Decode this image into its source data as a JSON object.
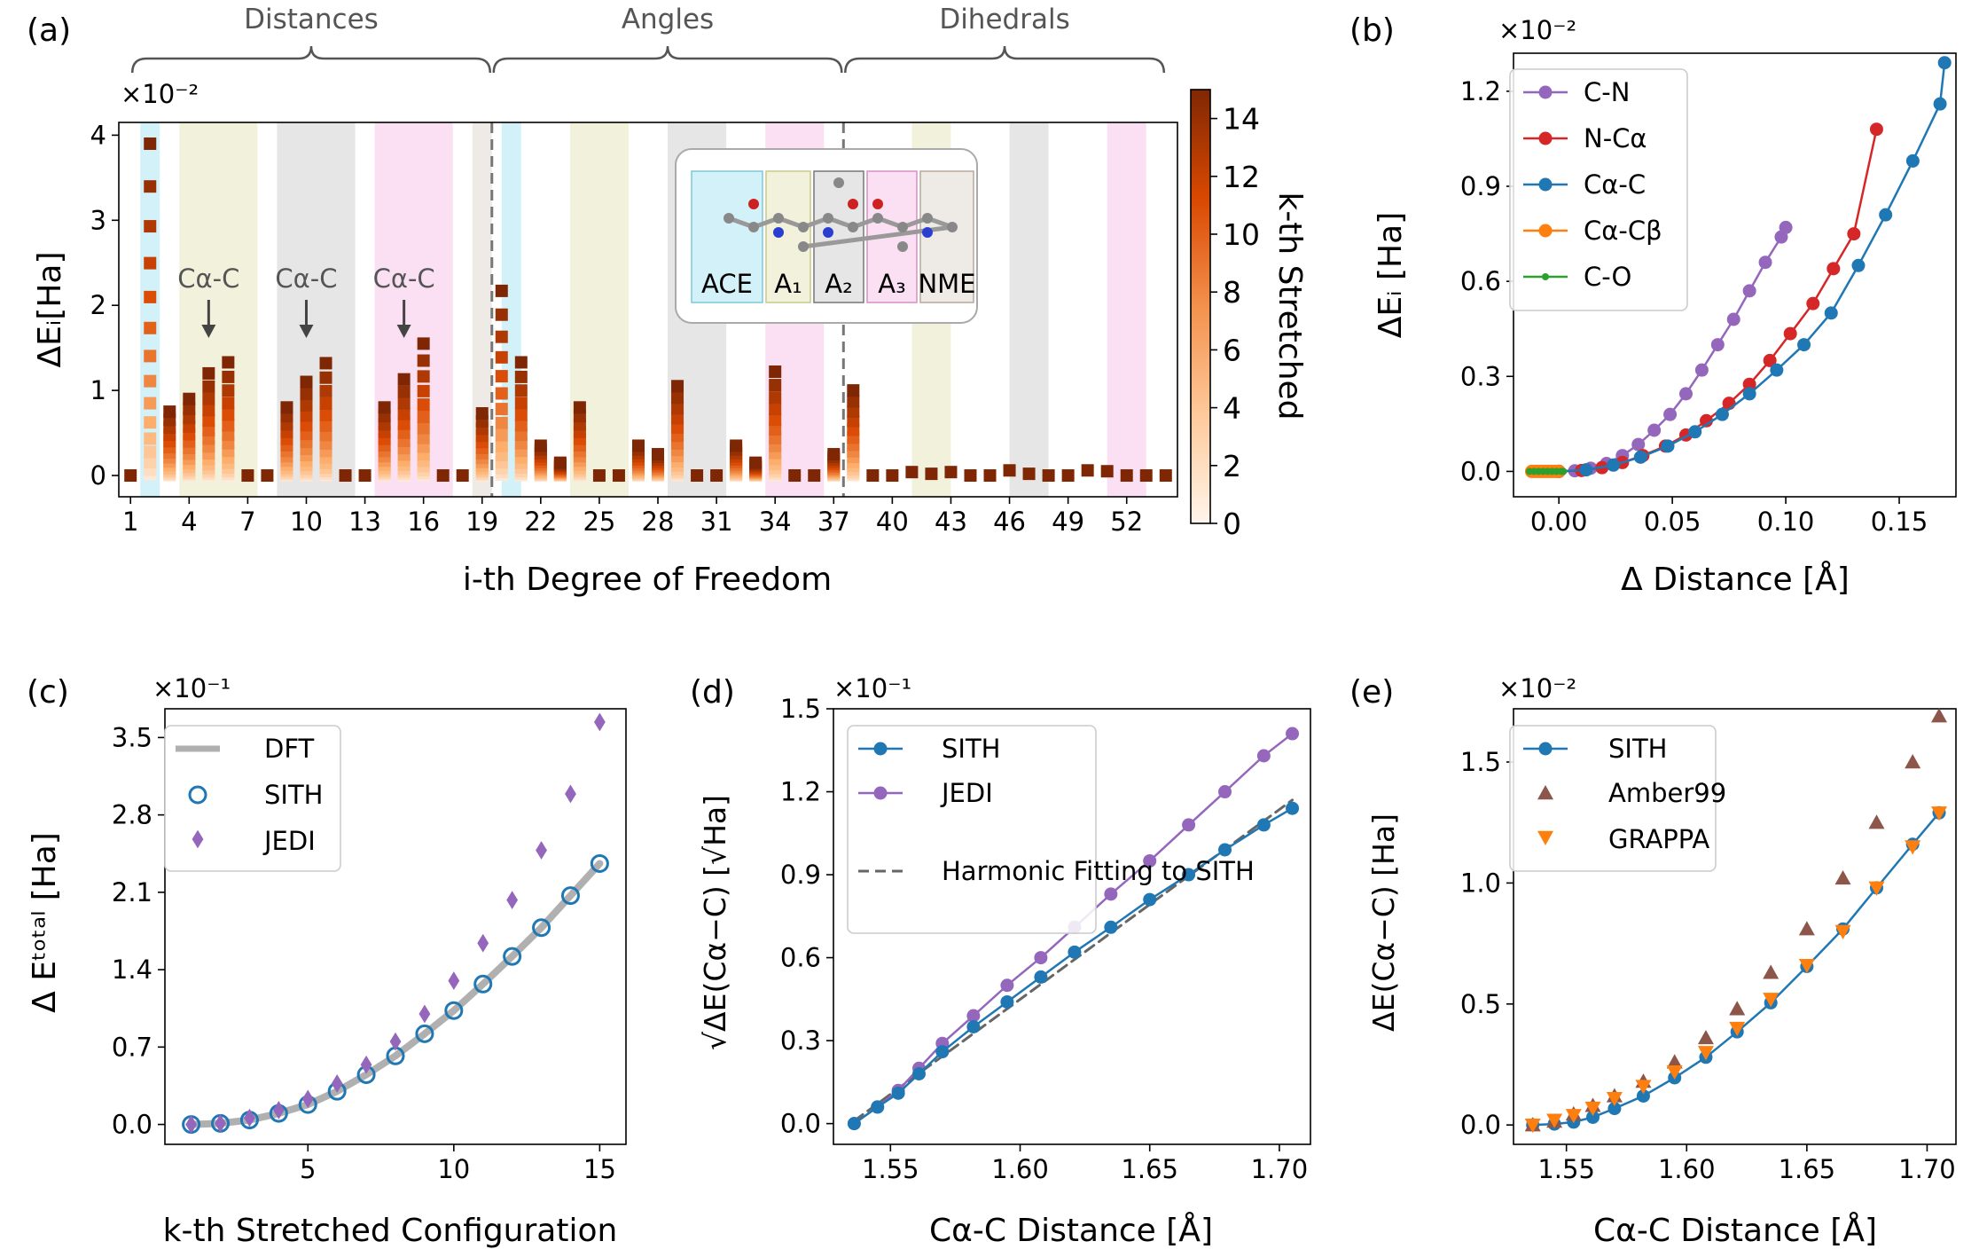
{
  "figure": {
    "panels": [
      "(a)",
      "(b)",
      "(c)",
      "(d)",
      "(e)"
    ]
  },
  "colors": {
    "sith": "#1f77b4",
    "jedi": "#9467bd",
    "cn": "#9467bd",
    "nca": "#d62728",
    "cac": "#1f77b4",
    "cacb": "#ff7f0e",
    "co": "#2ca02c",
    "amber": "#8c564b",
    "grappa": "#ff7f0e",
    "dft": "#b0b0b0",
    "ace": "#d3f1f8",
    "a1": "#f2f2dc",
    "a2": "#e6e6e6",
    "a3": "#fae0f2",
    "nme": "#eeeae6"
  },
  "chart_data": [
    {
      "panel": "(a)",
      "type": "bar",
      "title": "",
      "xlabel": "i-th Degree of Freedom",
      "ylabel": "ΔEᵢ[Ha]",
      "scale_label": "×10⁻²",
      "ylim": [
        -0.25,
        4.15
      ],
      "xlim": [
        0.4,
        54.6
      ],
      "xticks": [
        1,
        4,
        7,
        10,
        13,
        16,
        19,
        22,
        25,
        28,
        31,
        34,
        37,
        40,
        43,
        46,
        49,
        52
      ],
      "yticks": [
        0,
        1,
        2,
        3,
        4
      ],
      "braces": [
        "Distances",
        "Angles",
        "Dihedrals"
      ],
      "annotations": [
        "Cα-C",
        "Cα-C",
        "Cα-C"
      ],
      "annotation_x": [
        5,
        10,
        15
      ],
      "separators_x": [
        19.5,
        37.5
      ],
      "colorbar": {
        "label": "k-th Stretched",
        "ticks": [
          0,
          2,
          4,
          6,
          8,
          10,
          12,
          14
        ],
        "range": [
          0,
          15
        ]
      },
      "max_values": [
        0.0,
        3.9,
        0.75,
        0.9,
        1.2,
        1.33,
        0.0,
        0.0,
        0.8,
        1.1,
        1.32,
        0.0,
        0.0,
        0.8,
        1.13,
        1.55,
        0.0,
        0.0,
        0.73,
        2.17,
        1.33,
        0.35,
        0.15,
        0.8,
        0.0,
        0.0,
        0.35,
        0.25,
        1.05,
        0.0,
        0.0,
        0.35,
        0.15,
        1.22,
        0.0,
        0.0,
        0.25,
        1.0,
        0.0,
        0.0,
        0.04,
        0.02,
        0.04,
        0.0,
        0.0,
        0.06,
        0.02,
        0.0,
        0.0,
        0.06,
        0.05,
        0.0,
        0.0,
        0.0
      ],
      "regions": [
        {
          "name": "ACE",
          "color_key": "ace",
          "ranges": [
            [
              1.5,
              2.5
            ],
            [
              20,
              21
            ]
          ]
        },
        {
          "name": "A1",
          "color_key": "a1",
          "ranges": [
            [
              3.5,
              7.5
            ],
            [
              23.5,
              26.5
            ],
            [
              41,
              43
            ]
          ]
        },
        {
          "name": "A2",
          "color_key": "a2",
          "ranges": [
            [
              8.5,
              12.5
            ],
            [
              28.5,
              31.5
            ],
            [
              46,
              48
            ]
          ]
        },
        {
          "name": "A3",
          "color_key": "a3",
          "ranges": [
            [
              13.5,
              17.5
            ],
            [
              33.5,
              36.5
            ],
            [
              51,
              53
            ]
          ]
        },
        {
          "name": "NME",
          "color_key": "nme",
          "ranges": [
            [
              18.5,
              19.5
            ]
          ]
        }
      ],
      "inset": {
        "labels": [
          "ACE",
          "A₁",
          "A₂",
          "A₃",
          "NME"
        ]
      }
    },
    {
      "panel": "(b)",
      "type": "line",
      "title": "",
      "xlabel": "Δ Distance [Å]",
      "ylabel": "ΔEᵢ [Ha]",
      "scale_label": "×10⁻²",
      "xlim": [
        -0.02,
        0.175
      ],
      "ylim": [
        -0.08,
        1.32
      ],
      "xticks": [
        0.0,
        0.05,
        0.1,
        0.15
      ],
      "yticks": [
        0.0,
        0.3,
        0.6,
        0.9,
        1.2
      ],
      "legend_position": "top-left",
      "series": [
        {
          "name": "C-N",
          "color_key": "cn",
          "x": [
            0,
            0.007,
            0.014,
            0.021,
            0.028,
            0.035,
            0.042,
            0.049,
            0.056,
            0.063,
            0.07,
            0.077,
            0.084,
            0.091,
            0.098,
            0.1
          ],
          "y": [
            0,
            0.002,
            0.01,
            0.025,
            0.05,
            0.085,
            0.13,
            0.18,
            0.245,
            0.32,
            0.4,
            0.48,
            0.57,
            0.66,
            0.74,
            0.77
          ]
        },
        {
          "name": "N-Cα",
          "color_key": "nca",
          "x": [
            0,
            0.01,
            0.019,
            0.028,
            0.037,
            0.047,
            0.056,
            0.065,
            0.075,
            0.084,
            0.093,
            0.102,
            0.112,
            0.121,
            0.13,
            0.14
          ],
          "y": [
            0,
            0.003,
            0.012,
            0.028,
            0.05,
            0.08,
            0.115,
            0.16,
            0.215,
            0.275,
            0.35,
            0.435,
            0.53,
            0.64,
            0.75,
            1.08
          ]
        },
        {
          "name": "Cα-C",
          "color_key": "cac",
          "x": [
            0,
            0.012,
            0.024,
            0.036,
            0.048,
            0.06,
            0.072,
            0.084,
            0.096,
            0.108,
            0.12,
            0.132,
            0.144,
            0.156,
            0.168,
            0.17
          ],
          "y": [
            0,
            0.005,
            0.02,
            0.045,
            0.08,
            0.125,
            0.18,
            0.245,
            0.32,
            0.4,
            0.5,
            0.65,
            0.81,
            0.98,
            1.16,
            1.29
          ]
        },
        {
          "name": "Cα-Cβ",
          "color_key": "cacb",
          "x": [
            -0.012,
            -0.011,
            -0.01,
            -0.009,
            -0.008,
            -0.007,
            -0.006,
            -0.005,
            -0.004,
            -0.003,
            -0.002,
            -0.001,
            0.0
          ],
          "y": [
            0,
            0,
            0,
            0,
            0,
            0,
            0,
            0,
            0,
            0,
            0,
            0,
            0
          ]
        },
        {
          "name": "C-O",
          "color_key": "co",
          "x": [
            -0.013,
            -0.011,
            -0.009,
            -0.007,
            -0.005,
            -0.003,
            -0.001,
            0.001,
            0.002
          ],
          "y": [
            0,
            0,
            0,
            0,
            0,
            0,
            0,
            0,
            0
          ]
        }
      ]
    },
    {
      "panel": "(c)",
      "type": "scatter",
      "title": "",
      "xlabel": "k-th Stretched Configuration",
      "ylabel": "Δ Eᵗᵒᵗᵃˡ [Ha]",
      "scale_label": "×10⁻¹",
      "xlim": [
        0.1,
        15.9
      ],
      "ylim": [
        -0.18,
        3.76
      ],
      "xticks": [
        5,
        10,
        15
      ],
      "yticks": [
        0.0,
        0.7,
        1.4,
        2.1,
        2.8,
        3.5
      ],
      "legend_position": "top-left",
      "series": [
        {
          "name": "DFT",
          "color_key": "dft",
          "x": [
            1,
            2,
            3,
            4,
            5,
            6,
            7,
            8,
            9,
            10,
            11,
            12,
            13,
            14,
            15
          ],
          "y": [
            0.0,
            0.01,
            0.04,
            0.1,
            0.18,
            0.3,
            0.45,
            0.62,
            0.82,
            1.03,
            1.27,
            1.52,
            1.78,
            2.07,
            2.36
          ]
        },
        {
          "name": "SITH",
          "color_key": "sith",
          "x": [
            1,
            2,
            3,
            4,
            5,
            6,
            7,
            8,
            9,
            10,
            11,
            12,
            13,
            14,
            15
          ],
          "y": [
            0.0,
            0.01,
            0.04,
            0.1,
            0.18,
            0.3,
            0.45,
            0.62,
            0.82,
            1.03,
            1.27,
            1.52,
            1.78,
            2.07,
            2.36
          ]
        },
        {
          "name": "JEDI",
          "color_key": "jedi",
          "x": [
            1,
            2,
            3,
            4,
            5,
            6,
            7,
            8,
            9,
            10,
            11,
            12,
            13,
            14,
            15
          ],
          "y": [
            0.0,
            0.01,
            0.06,
            0.13,
            0.23,
            0.37,
            0.54,
            0.75,
            1.0,
            1.3,
            1.64,
            2.03,
            2.48,
            2.99,
            3.64
          ]
        }
      ]
    },
    {
      "panel": "(d)",
      "type": "line",
      "title": "",
      "xlabel": "Cα-C Distance [Å]",
      "ylabel": "√ΔE(Cα−C) [√Ha]",
      "scale_label": "×10⁻¹",
      "xlim": [
        1.528,
        1.712
      ],
      "ylim": [
        -0.075,
        1.5
      ],
      "xticks": [
        1.55,
        1.6,
        1.65,
        1.7
      ],
      "yticks": [
        0.0,
        0.3,
        0.6,
        0.9,
        1.2,
        1.5
      ],
      "legend_position": "top-left",
      "series": [
        {
          "name": "SITH",
          "color_key": "sith",
          "x": [
            1.536,
            1.545,
            1.553,
            1.561,
            1.57,
            1.582,
            1.595,
            1.608,
            1.621,
            1.635,
            1.65,
            1.665,
            1.679,
            1.694,
            1.705
          ],
          "y": [
            0.0,
            0.06,
            0.11,
            0.18,
            0.26,
            0.35,
            0.44,
            0.53,
            0.62,
            0.71,
            0.81,
            0.9,
            0.99,
            1.08,
            1.14
          ]
        },
        {
          "name": "JEDI",
          "color_key": "jedi",
          "x": [
            1.536,
            1.545,
            1.553,
            1.561,
            1.57,
            1.582,
            1.595,
            1.608,
            1.621,
            1.635,
            1.65,
            1.665,
            1.679,
            1.694,
            1.705
          ],
          "y": [
            0.0,
            0.06,
            0.12,
            0.2,
            0.29,
            0.39,
            0.5,
            0.6,
            0.71,
            0.83,
            0.95,
            1.08,
            1.2,
            1.33,
            1.41
          ]
        },
        {
          "name": "Harmonic Fitting to SITH",
          "color_key": "dft",
          "x": [
            1.536,
            1.705
          ],
          "y": [
            0.01,
            1.17
          ]
        }
      ]
    },
    {
      "panel": "(e)",
      "type": "scatter",
      "title": "",
      "xlabel": "Cα-C Distance [Å]",
      "ylabel": "ΔE(Cα−C) [Ha]",
      "scale_label": "×10⁻²",
      "xlim": [
        1.528,
        1.712
      ],
      "ylim": [
        -0.08,
        1.72
      ],
      "xticks": [
        1.55,
        1.6,
        1.65,
        1.7
      ],
      "yticks": [
        0.0,
        0.5,
        1.0,
        1.5
      ],
      "legend_position": "top-left",
      "series": [
        {
          "name": "SITH",
          "color_key": "sith",
          "x": [
            1.536,
            1.545,
            1.553,
            1.561,
            1.57,
            1.582,
            1.595,
            1.608,
            1.621,
            1.635,
            1.65,
            1.665,
            1.679,
            1.694,
            1.705
          ],
          "y": [
            0.0,
            0.004,
            0.012,
            0.032,
            0.068,
            0.12,
            0.195,
            0.28,
            0.385,
            0.505,
            0.655,
            0.81,
            0.98,
            1.16,
            1.29
          ]
        },
        {
          "name": "Amber99",
          "color_key": "amber",
          "x": [
            1.536,
            1.545,
            1.553,
            1.561,
            1.57,
            1.582,
            1.595,
            1.608,
            1.621,
            1.635,
            1.65,
            1.665,
            1.679,
            1.694,
            1.705
          ],
          "y": [
            0.0,
            0.015,
            0.045,
            0.08,
            0.12,
            0.18,
            0.26,
            0.36,
            0.48,
            0.63,
            0.81,
            1.02,
            1.25,
            1.5,
            1.69
          ]
        },
        {
          "name": "GRAPPA",
          "color_key": "grappa",
          "x": [
            1.536,
            1.545,
            1.553,
            1.561,
            1.57,
            1.582,
            1.595,
            1.608,
            1.621,
            1.635,
            1.65,
            1.665,
            1.679,
            1.694,
            1.705
          ],
          "y": [
            0.0,
            0.02,
            0.04,
            0.07,
            0.11,
            0.16,
            0.22,
            0.3,
            0.4,
            0.52,
            0.66,
            0.8,
            0.98,
            1.15,
            1.29
          ]
        }
      ]
    }
  ]
}
